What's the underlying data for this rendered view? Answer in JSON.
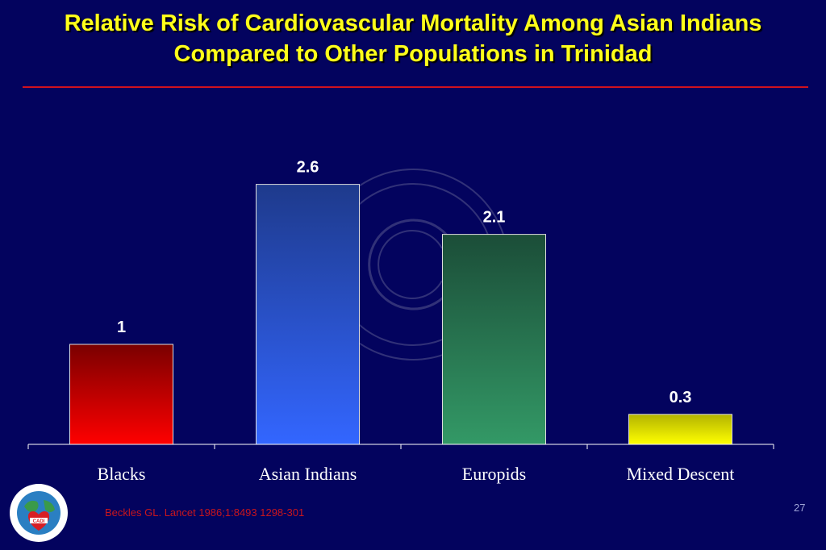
{
  "slide": {
    "title_line1": "Relative Risk of Cardiovascular Mortality Among Asian Indians",
    "title_line2": "Compared to Other Populations in Trinidad",
    "citation": "Beckles GL. Lancet 1986;1:8493 1298-301",
    "page_number": "27",
    "colors": {
      "background": "#03035e",
      "title": "#ffff1a",
      "rule": "#d0121e",
      "citation": "#c8161d"
    },
    "logo": {
      "icon": "cadi-foundation-logo-icon"
    }
  },
  "chart_data": {
    "type": "bar",
    "categories": [
      "Blacks",
      "Asian Indians",
      "Europids",
      "Mixed Descent"
    ],
    "values": [
      1,
      2.6,
      2.1,
      0.3
    ],
    "data_labels": [
      "1",
      "2.6",
      "2.1",
      "0.3"
    ],
    "title": "",
    "xlabel": "",
    "ylabel": "",
    "ylim": [
      0,
      3.5
    ],
    "grid": false,
    "legend": "none",
    "bar_colors": [
      {
        "top": "#7a0000",
        "bottom": "#ff0000"
      },
      {
        "top": "#1e3a8c",
        "bottom": "#3366ff"
      },
      {
        "top": "#1b4d38",
        "bottom": "#339966"
      },
      {
        "top": "#b3b300",
        "bottom": "#ffff00"
      }
    ]
  }
}
